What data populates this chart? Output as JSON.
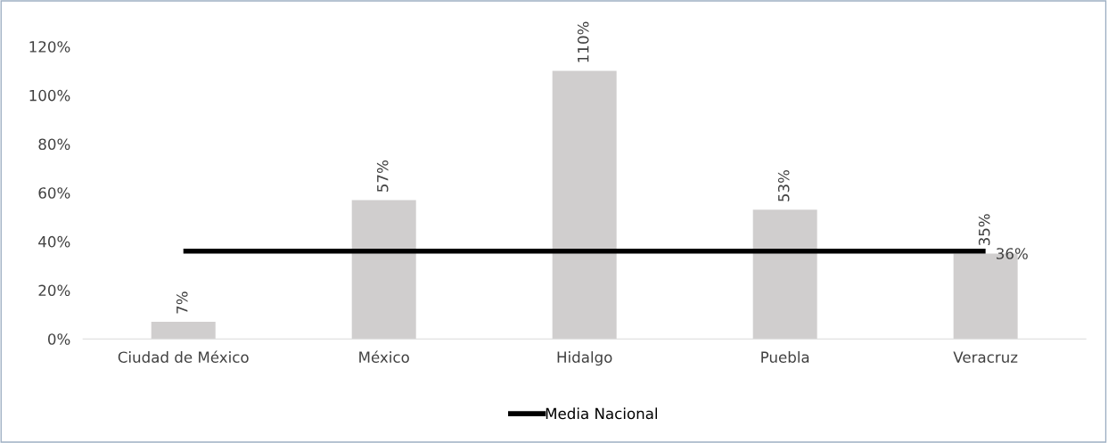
{
  "chart_data": {
    "type": "bar",
    "categories": [
      "Ciudad de México",
      "México",
      "Hidalgo",
      "Puebla",
      "Veracruz"
    ],
    "series": [
      {
        "color": "#d0cece",
        "values": [
          7,
          57,
          110,
          53,
          35
        ],
        "value_labels": [
          "7%",
          "57%",
          "110%",
          "53%",
          "35%"
        ]
      },
      {
        "type": "line",
        "name": "Media Nacional",
        "color": "#000000",
        "values": [
          36,
          36,
          36,
          36,
          36
        ],
        "value_labels": [
          null,
          null,
          null,
          null,
          "36%"
        ]
      }
    ],
    "ylim": [
      0,
      120
    ],
    "yticks": [
      {
        "value": 0,
        "label": "0%"
      },
      {
        "value": 20,
        "label": "20%"
      },
      {
        "value": 40,
        "label": "40%"
      },
      {
        "value": 60,
        "label": "60%"
      },
      {
        "value": 80,
        "label": "80%"
      },
      {
        "value": 100,
        "label": "100%"
      },
      {
        "value": 120,
        "label": "120%"
      }
    ],
    "grid": false,
    "legend": "bottom"
  }
}
